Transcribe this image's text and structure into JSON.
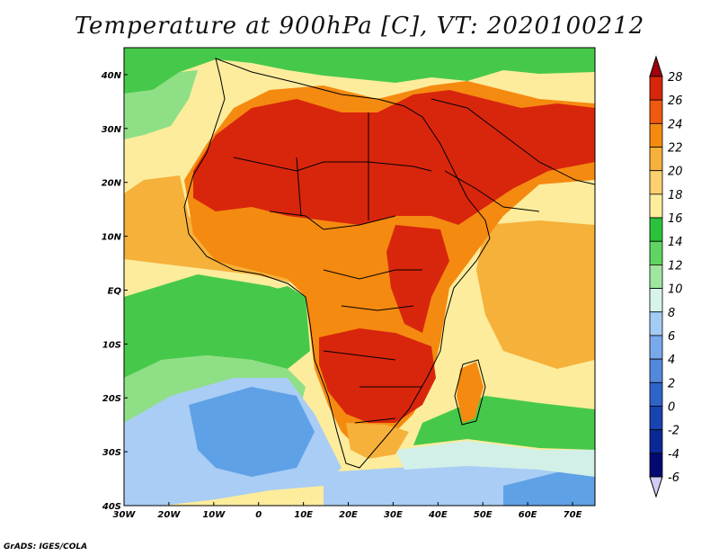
{
  "title": "Temperature at 900hPa [C], VT: 2020100212",
  "credit": "GrADS: IGES/COLA",
  "lon_labels": [
    "30W",
    "20W",
    "10W",
    "0",
    "10E",
    "20E",
    "30E",
    "40E",
    "50E",
    "60E",
    "70E"
  ],
  "lat_labels": [
    "40N",
    "30N",
    "20N",
    "10N",
    "EQ",
    "10S",
    "20S",
    "30S",
    "40S"
  ],
  "colorbar": {
    "labels": [
      "28",
      "26",
      "24",
      "22",
      "20",
      "18",
      "16",
      "14",
      "12",
      "10",
      "8",
      "6",
      "4",
      "2",
      "0",
      "-2",
      "-4",
      "-6"
    ],
    "colors": [
      "#a0000f",
      "#d8260c",
      "#ef5a10",
      "#f58a10",
      "#f6b13a",
      "#fad070",
      "#fcec9c",
      "#2ac23b",
      "#5fd460",
      "#a0e6a0",
      "#d6f3ec",
      "#a4cbf3",
      "#7aa8ec",
      "#5588dd",
      "#2f64c8",
      "#1744b0",
      "#0a2896",
      "#020a72",
      "#d4ccf5"
    ]
  },
  "map_colors": {
    "ocean_cold": "#5fa1e6",
    "ocean_cool": "#a9cdf4",
    "ocean_mild": "#d2f0e8",
    "ocean_green": "#46c94a",
    "ocean_lightgreen": "#8fdf86",
    "warm_yellow": "#fcec9c",
    "warm_orange": "#f6b13a",
    "hot_orange": "#f58a10",
    "hot_red": "#d8260c",
    "border": "#000000"
  }
}
